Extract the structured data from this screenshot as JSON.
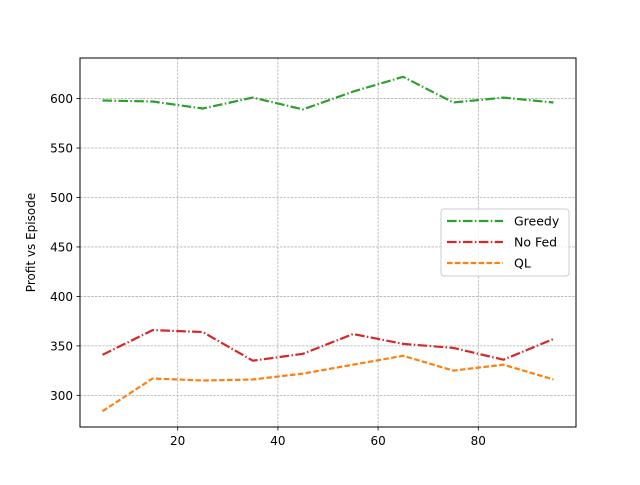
{
  "chart_data": {
    "type": "line",
    "title": "",
    "xlabel": "",
    "ylabel": "Profit vs Episode",
    "xlim": [
      0.5,
      99.5
    ],
    "ylim": [
      268,
      641
    ],
    "x_ticks": [
      20,
      40,
      60,
      80
    ],
    "y_ticks": [
      300,
      350,
      400,
      450,
      500,
      550,
      600
    ],
    "grid": true,
    "legend_position": "center-right",
    "x": [
      5,
      15,
      25,
      35,
      45,
      55,
      65,
      75,
      85,
      95
    ],
    "series": [
      {
        "name": "Greedy",
        "values": [
          598,
          597,
          590,
          601,
          589,
          607,
          622,
          596,
          601,
          596
        ],
        "color": "#2ca02c",
        "line_style": "dashdot"
      },
      {
        "name": "No Fed",
        "values": [
          341,
          366,
          364,
          335,
          342,
          362,
          352,
          348,
          336,
          357
        ],
        "color": "#d62728",
        "line_style": "dashdot"
      },
      {
        "name": "QL",
        "values": [
          284,
          317,
          315,
          316,
          322,
          331,
          340,
          325,
          331,
          316
        ],
        "color": "#ff7f0e",
        "line_style": "dashed"
      }
    ]
  }
}
